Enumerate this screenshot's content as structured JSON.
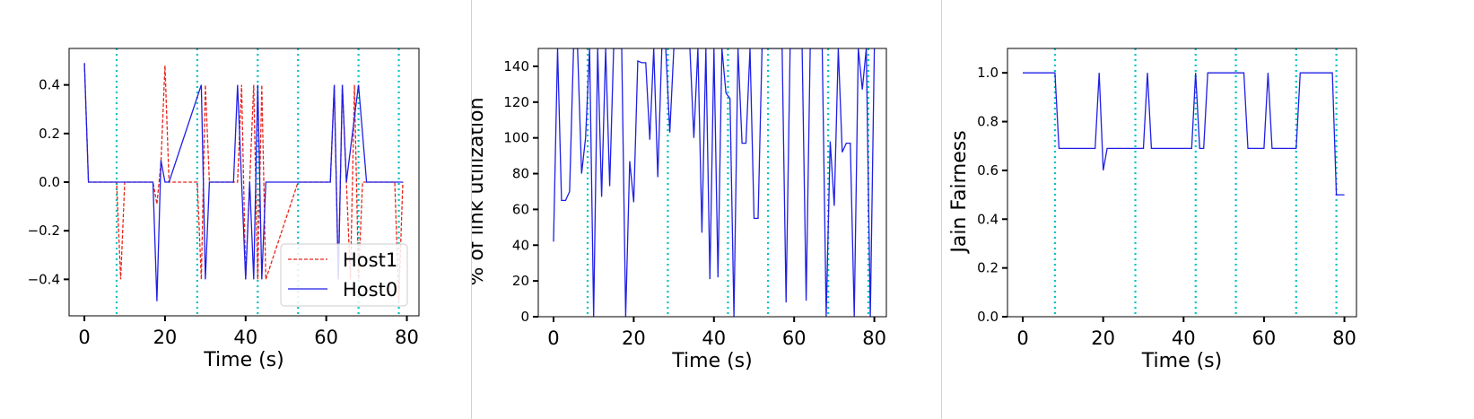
{
  "theme": {
    "line_blue": "#1f1fe6",
    "line_red": "#e8261c",
    "vline": "#00c4c4",
    "separator": "#c9d3e2"
  },
  "chart_data": [
    {
      "type": "line",
      "xlabel": "Time (s)",
      "ylabel": "",
      "xlim": [
        -3.8,
        83
      ],
      "ylim": [
        -0.55,
        0.55
      ],
      "xticks": [
        0,
        20,
        40,
        60,
        80
      ],
      "xtick_labels": [
        "0",
        "20",
        "40",
        "60",
        "80"
      ],
      "yticks": [
        -0.4,
        -0.2,
        0.0,
        0.2,
        0.4
      ],
      "ytick_labels": [
        "−0.4",
        "−0.2",
        "0.0",
        "0.2",
        "0.4"
      ],
      "vlines": [
        8,
        28,
        43,
        53,
        68,
        78
      ],
      "legend": {
        "position": "lower-right"
      },
      "series": [
        {
          "name": "Host1",
          "style": "dashed",
          "color": "#e8261c",
          "x": [
            0,
            1,
            8,
            9,
            10,
            17,
            18,
            19,
            20,
            21,
            28,
            29,
            30,
            31,
            38,
            39,
            40,
            41,
            42,
            43,
            44,
            45,
            53,
            61,
            62,
            63,
            64,
            66,
            67,
            68,
            69,
            77,
            78,
            79
          ],
          "y": [
            0.49,
            0.0,
            0.0,
            -0.4,
            0.0,
            0.0,
            -0.09,
            0.08,
            0.48,
            0.0,
            0.0,
            -0.4,
            0.4,
            0.0,
            0.0,
            0.4,
            -0.4,
            0.0,
            0.4,
            -0.4,
            0.4,
            -0.4,
            0.0,
            0.0,
            0.4,
            -0.4,
            0.4,
            -0.4,
            0.4,
            -0.4,
            0.0,
            0.0,
            -0.49,
            0.0
          ]
        },
        {
          "name": "Host0",
          "style": "solid",
          "color": "#1f1fe6",
          "x": [
            0,
            1,
            17,
            18,
            19,
            20,
            21,
            29,
            30,
            31,
            37,
            38,
            39,
            40,
            41,
            42,
            43,
            44,
            45,
            61,
            62,
            63,
            64,
            65,
            68,
            70,
            79
          ],
          "y": [
            0.49,
            0.0,
            0.0,
            -0.49,
            0.09,
            0.0,
            0.0,
            0.4,
            -0.4,
            0.0,
            0.0,
            0.4,
            0.0,
            -0.4,
            0.0,
            -0.4,
            0.4,
            -0.4,
            0.0,
            0.0,
            0.4,
            -0.4,
            0.4,
            0.0,
            0.4,
            0.0,
            0.0
          ]
        }
      ]
    },
    {
      "type": "line",
      "xlabel": "Time (s)",
      "ylabel": "% of link utilization",
      "xlim": [
        -3.8,
        83
      ],
      "ylim": [
        0,
        150
      ],
      "xticks": [
        0,
        20,
        40,
        60,
        80
      ],
      "xtick_labels": [
        "0",
        "20",
        "40",
        "60",
        "80"
      ],
      "yticks": [
        0,
        20,
        40,
        60,
        80,
        100,
        120,
        140
      ],
      "ytick_labels": [
        "0",
        "20",
        "40",
        "60",
        "80",
        "100",
        "120",
        "140"
      ],
      "vlines": [
        8.5,
        28.5,
        43.5,
        53.5,
        68.5,
        78.5
      ],
      "series": [
        {
          "style": "solid",
          "color": "#1f1fe6",
          "x": [
            0,
            1,
            2,
            3,
            4,
            5,
            6,
            7,
            8,
            9,
            10,
            11,
            12,
            13,
            14,
            15,
            16,
            17,
            18,
            19,
            20,
            21,
            22,
            23,
            24,
            25,
            26,
            27,
            28,
            29,
            30,
            31,
            32,
            33,
            34,
            35,
            36,
            37,
            38,
            39,
            40,
            41,
            42,
            43,
            44,
            45,
            46,
            47,
            48,
            49,
            50,
            51,
            52,
            53,
            54,
            55,
            56,
            57,
            58,
            59,
            60,
            61,
            62,
            63,
            64,
            65,
            66,
            67,
            68,
            69,
            70,
            71,
            72,
            73,
            74,
            75,
            76,
            77,
            78,
            79,
            80
          ],
          "y": [
            42,
            150,
            65,
            65,
            70,
            150,
            150,
            80,
            100,
            150,
            0,
            150,
            67,
            150,
            73,
            150,
            150,
            150,
            0,
            87,
            64,
            143,
            142,
            142,
            99,
            150,
            78,
            150,
            150,
            103,
            150,
            150,
            150,
            150,
            150,
            100,
            150,
            47,
            150,
            21,
            150,
            22,
            150,
            125,
            122,
            0,
            150,
            97,
            97,
            150,
            55,
            55,
            150,
            150,
            150,
            150,
            150,
            150,
            8,
            150,
            150,
            150,
            150,
            9,
            150,
            150,
            150,
            150,
            0,
            98,
            62,
            150,
            92,
            97,
            97,
            0,
            150,
            127,
            150,
            0,
            150
          ]
        }
      ]
    },
    {
      "type": "line",
      "xlabel": "Time (s)",
      "ylabel": "Jain Fairness",
      "xlim": [
        -3.8,
        83
      ],
      "ylim": [
        0,
        1.1
      ],
      "xticks": [
        0,
        20,
        40,
        60,
        80
      ],
      "xtick_labels": [
        "0",
        "20",
        "40",
        "60",
        "80"
      ],
      "yticks": [
        0.0,
        0.2,
        0.4,
        0.6,
        0.8,
        1.0
      ],
      "ytick_labels": [
        "0.0",
        "0.2",
        "0.4",
        "0.6",
        "0.8",
        "1.0"
      ],
      "vlines": [
        8,
        28,
        43,
        53,
        68,
        78
      ],
      "series": [
        {
          "style": "solid",
          "color": "#1f1fe6",
          "x": [
            0,
            8,
            9,
            18,
            19,
            20,
            21,
            30,
            31,
            32,
            42,
            43,
            44,
            45,
            46,
            55,
            56,
            60,
            61,
            62,
            68,
            69,
            70,
            71,
            77,
            78,
            79,
            80
          ],
          "y": [
            1.0,
            1.0,
            0.69,
            0.69,
            1.0,
            0.6,
            0.69,
            0.69,
            1.0,
            0.69,
            0.69,
            1.0,
            0.69,
            0.69,
            1.0,
            1.0,
            0.69,
            0.69,
            1.0,
            0.69,
            0.69,
            1.0,
            1.0,
            1.0,
            1.0,
            0.5,
            0.5,
            0.5
          ]
        }
      ]
    }
  ]
}
